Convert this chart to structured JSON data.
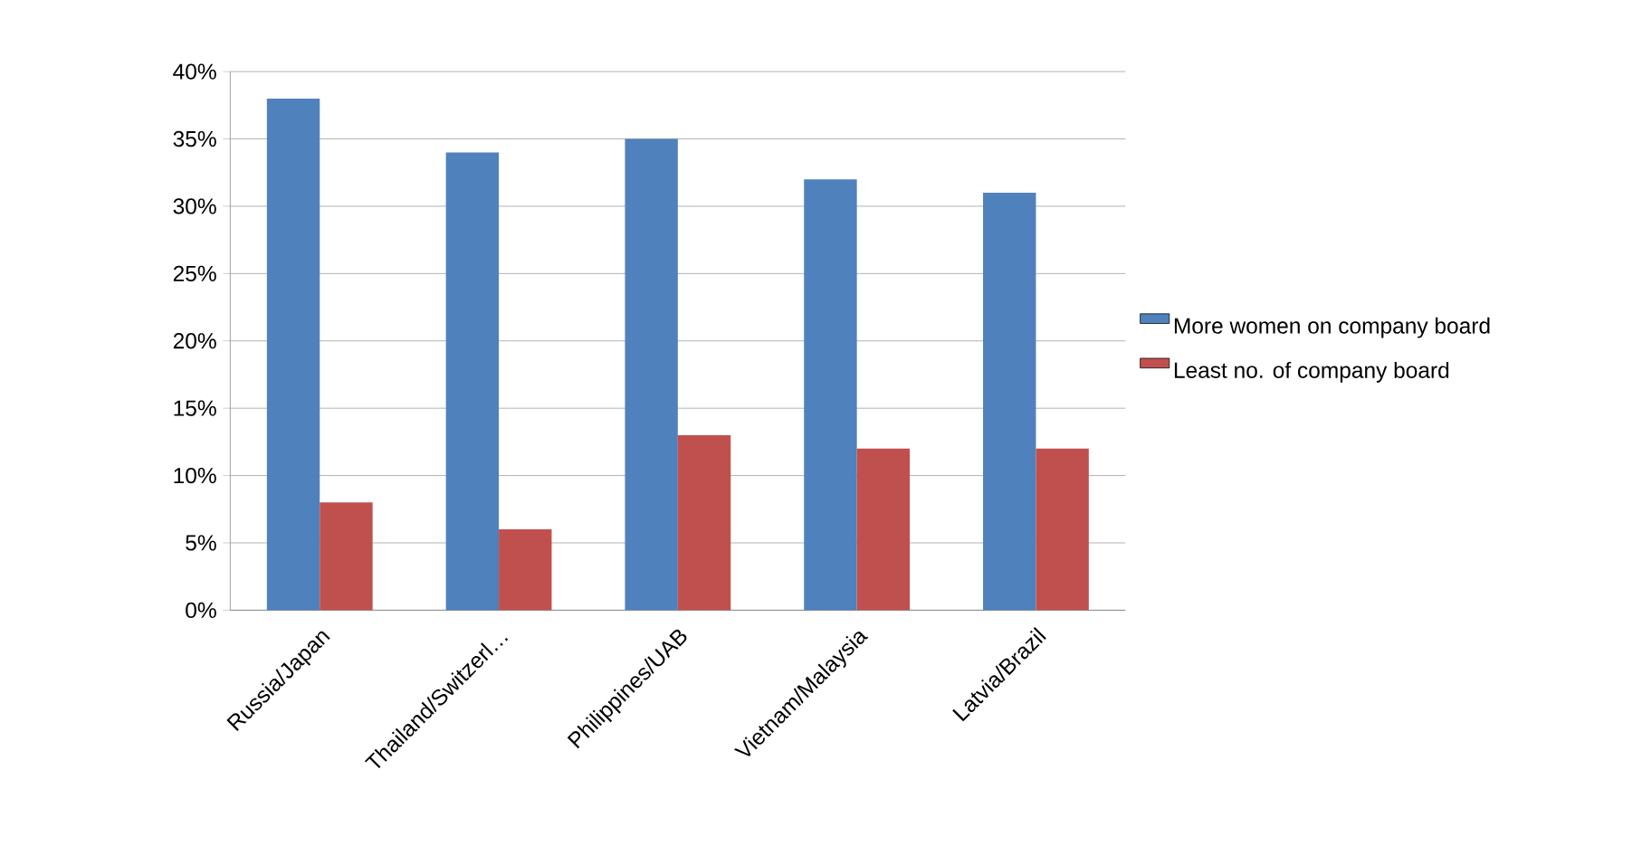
{
  "chart_data": {
    "type": "bar",
    "categories": [
      "Russia/Japan",
      "Thailand/Switzerl…",
      "Philippines/UAB",
      "Vietnam/Malaysia",
      "Latvia/Brazil"
    ],
    "series": [
      {
        "name": "More women on company board",
        "color": "#4f81bd",
        "values": [
          38,
          34,
          35,
          32,
          31
        ]
      },
      {
        "name": "Least no. of company board",
        "color": "#c0504d",
        "values": [
          8,
          6,
          13,
          12,
          12
        ]
      }
    ],
    "ylim": [
      0,
      40
    ],
    "yticks": [
      {
        "value": 0,
        "label": "0%"
      },
      {
        "value": 5,
        "label": "5%"
      },
      {
        "value": 10,
        "label": "10%"
      },
      {
        "value": 15,
        "label": "15%"
      },
      {
        "value": 20,
        "label": "20%"
      },
      {
        "value": 25,
        "label": "25%"
      },
      {
        "value": 30,
        "label": "30%"
      },
      {
        "value": 35,
        "label": "35%"
      },
      {
        "value": 40,
        "label": "40%"
      }
    ],
    "grid": "y",
    "legend": "right"
  }
}
